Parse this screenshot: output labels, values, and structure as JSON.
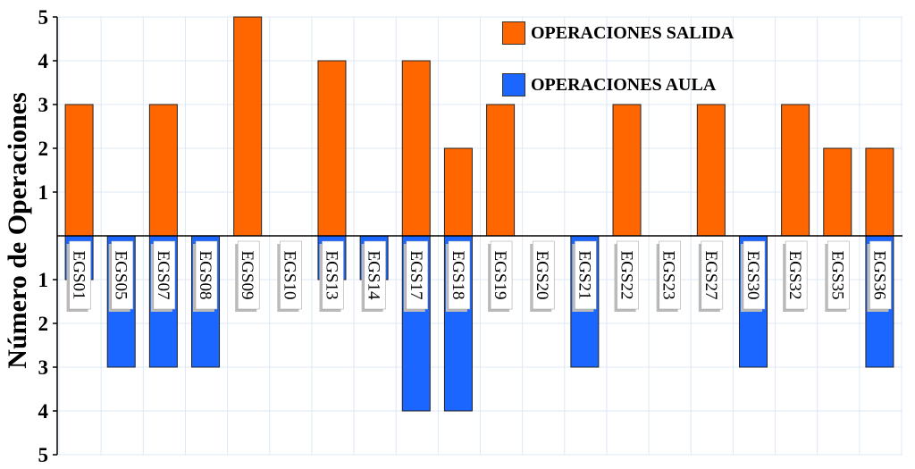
{
  "chart_data": {
    "type": "bar",
    "ylabel": "Número de Operaciones",
    "yticks_top": [
      "1",
      "2",
      "3",
      "4",
      "5"
    ],
    "yticks_bottom": [
      "1",
      "2",
      "3",
      "4",
      "5"
    ],
    "ylim": [
      -5,
      5
    ],
    "grid": true,
    "legend_position": "top-right",
    "categories": [
      "EGS01",
      "EGS05",
      "EGS07",
      "EGS08",
      "EGS09",
      "EGS10",
      "EGS13",
      "EGS14",
      "EGS17",
      "EGS18",
      "EGS19",
      "EGS20",
      "EGS21",
      "EGS22",
      "EGS23",
      "EGS27",
      "EGS30",
      "EGS32",
      "EGS35",
      "EGS36"
    ],
    "series": [
      {
        "name": "OPERACIONES SALIDA",
        "color": "#ff6600",
        "direction": "up",
        "values": [
          3,
          0,
          3,
          0,
          5,
          0,
          4,
          0,
          4,
          2,
          3,
          0,
          0,
          3,
          0,
          3,
          0,
          3,
          2,
          2
        ]
      },
      {
        "name": "OPERACIONES AULA",
        "color": "#1a66ff",
        "direction": "down",
        "values": [
          1,
          3,
          3,
          3,
          0,
          0,
          1,
          1,
          4,
          4,
          0,
          0,
          3,
          0,
          0,
          0,
          3,
          0,
          0,
          3
        ]
      }
    ]
  }
}
